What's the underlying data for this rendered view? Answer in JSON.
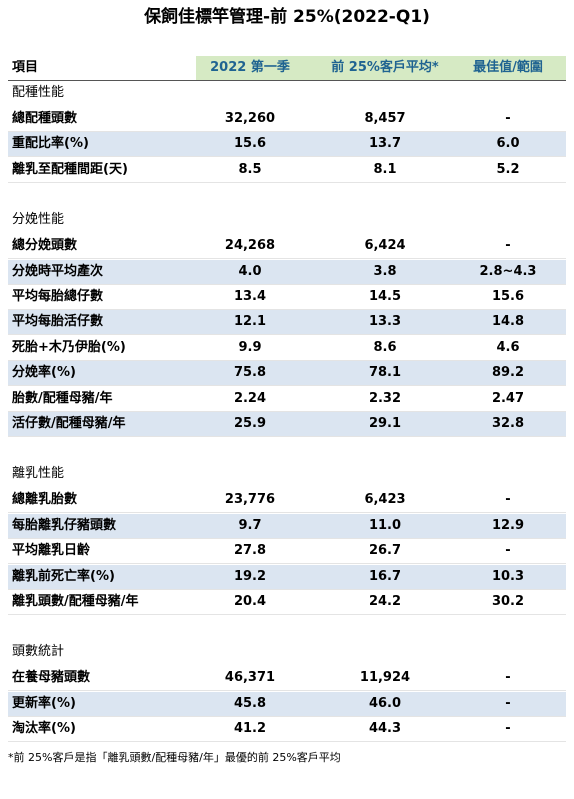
{
  "title": "保飼佳標竿管理-前 25%(2022-Q1)",
  "header": [
    "項目",
    "2022 第一季",
    "前 25%客戶平均*",
    "最佳值/範圍"
  ],
  "sections": [
    {
      "name": "配種性能",
      "rows": [
        [
          "總配種頭數",
          "32,260",
          "8,457",
          "-"
        ],
        [
          "重配比率(%)",
          "15.6",
          "13.7",
          "6.0"
        ],
        [
          "離乳至配種間距(天)",
          "8.5",
          "8.1",
          "5.2"
        ]
      ]
    },
    {
      "name": "分娩性能",
      "rows": [
        [
          "總分娩頭數",
          "24,268",
          "6,424",
          "-"
        ],
        [
          "分娩時平均產次",
          "4.0",
          "3.8",
          "2.8~4.3"
        ],
        [
          "平均每胎總仔數",
          "13.4",
          "14.5",
          "15.6"
        ],
        [
          "平均每胎活仔數",
          "12.1",
          "13.3",
          "14.8"
        ],
        [
          "死胎+木乃伊胎(%)",
          "9.9",
          "8.6",
          "4.6"
        ],
        [
          "分娩率(%)",
          "75.8",
          "78.1",
          "89.2"
        ],
        [
          "胎數/配種母豬/年",
          "2.24",
          "2.32",
          "2.47"
        ],
        [
          "活仔數/配種母豬/年",
          "25.9",
          "29.1",
          "32.8"
        ]
      ]
    },
    {
      "name": "離乳性能",
      "rows": [
        [
          "總離乳胎數",
          "23,776",
          "6,423",
          "-"
        ],
        [
          "每胎離乳仔豬頭數",
          "9.7",
          "11.0",
          "12.9"
        ],
        [
          "平均離乳日齡",
          "27.8",
          "26.7",
          "-"
        ],
        [
          "離乳前死亡率(%)",
          "19.2",
          "16.7",
          "10.3"
        ],
        [
          "離乳頭數/配種母豬/年",
          "20.4",
          "24.2",
          "30.2"
        ]
      ]
    },
    {
      "name": "頭數統計",
      "rows": [
        [
          "在養母豬頭數",
          "46,371",
          "11,924",
          "-"
        ],
        [
          "更新率(%)",
          "45.8",
          "46.0",
          "-"
        ],
        [
          "淘汰率(%)",
          "41.2",
          "44.3",
          "-"
        ]
      ]
    }
  ],
  "footnote": "*前 25%客戶是指「離乳頭數/配種母豬/年」最優的前 25%客戶平均"
}
